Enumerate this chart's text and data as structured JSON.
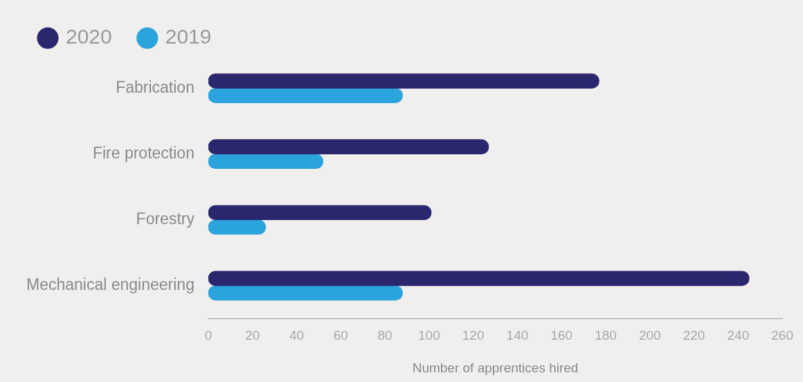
{
  "chart_data": {
    "type": "bar",
    "orientation": "horizontal",
    "categories": [
      "Fabrication",
      "Fire protection",
      "Forestry",
      "Mechanical engineering"
    ],
    "series": [
      {
        "name": "2020",
        "color": "#2a276e",
        "values": [
          177,
          127,
          101,
          245
        ]
      },
      {
        "name": "2019",
        "color": "#2ba3dd",
        "values": [
          88,
          52,
          26,
          88
        ]
      }
    ],
    "xlim": [
      0,
      260
    ],
    "xticks": [
      0,
      20,
      40,
      60,
      80,
      100,
      120,
      140,
      160,
      180,
      200,
      220,
      240,
      260
    ],
    "xlabel": "Number of apprentices hired",
    "legend": "top left",
    "grid": false
  }
}
